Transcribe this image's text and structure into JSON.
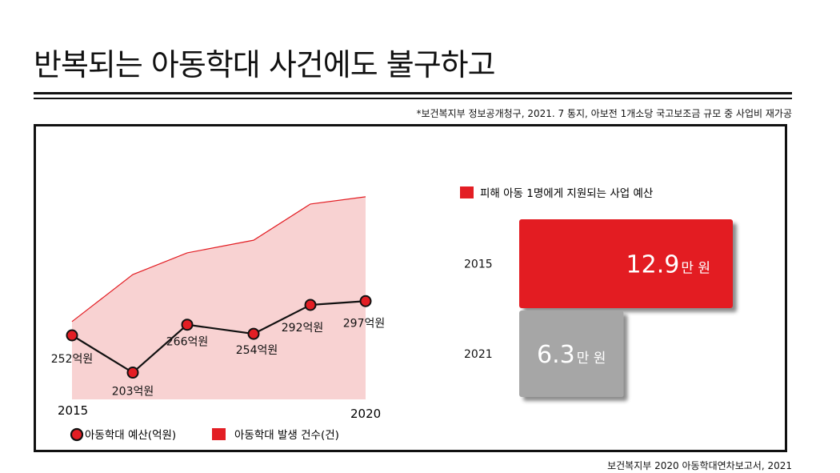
{
  "title": "반복되는 아동학대 사건에도 불구하고",
  "source_top": "*보건복지부 정보공개청구, 2021. 7 통지, 아보전 1개소당 국고보조금 규모 중 사업비 재가공",
  "source_bottom": "보건복지부 2020 아동학대연차보고서, 2021",
  "colors": {
    "red": "#e31e24",
    "area_fill": "#f8d2d2",
    "gray": "#a6a6a6",
    "line": "#111111"
  },
  "chart_data": [
    {
      "type": "line",
      "x_start_label": "2015",
      "x_end_label": "2020",
      "series": [
        {
          "name": "아동학대 예산(억원)",
          "kind": "line",
          "values": [
            252,
            203,
            266,
            254,
            292,
            297
          ],
          "labels": [
            "252억원",
            "203억원",
            "266억원",
            "254억원",
            "292억원",
            "297억원"
          ]
        },
        {
          "name": "아동학대 발생 건수(건)",
          "kind": "area",
          "relative_values": [
            0.43,
            0.69,
            0.81,
            0.88,
            1.08,
            1.12
          ]
        }
      ],
      "legend_placement": "bottom-left"
    },
    {
      "type": "bar",
      "orientation": "horizontal",
      "legend": "피해 아동 1명에게 지원되는 사업 예산",
      "categories": [
        "2015",
        "2021"
      ],
      "values": [
        12.9,
        6.3
      ],
      "value_labels": [
        "12.9",
        "6.3"
      ],
      "unit_label": "만 원",
      "colors": [
        "#e31e24",
        "#a6a6a6"
      ]
    }
  ]
}
